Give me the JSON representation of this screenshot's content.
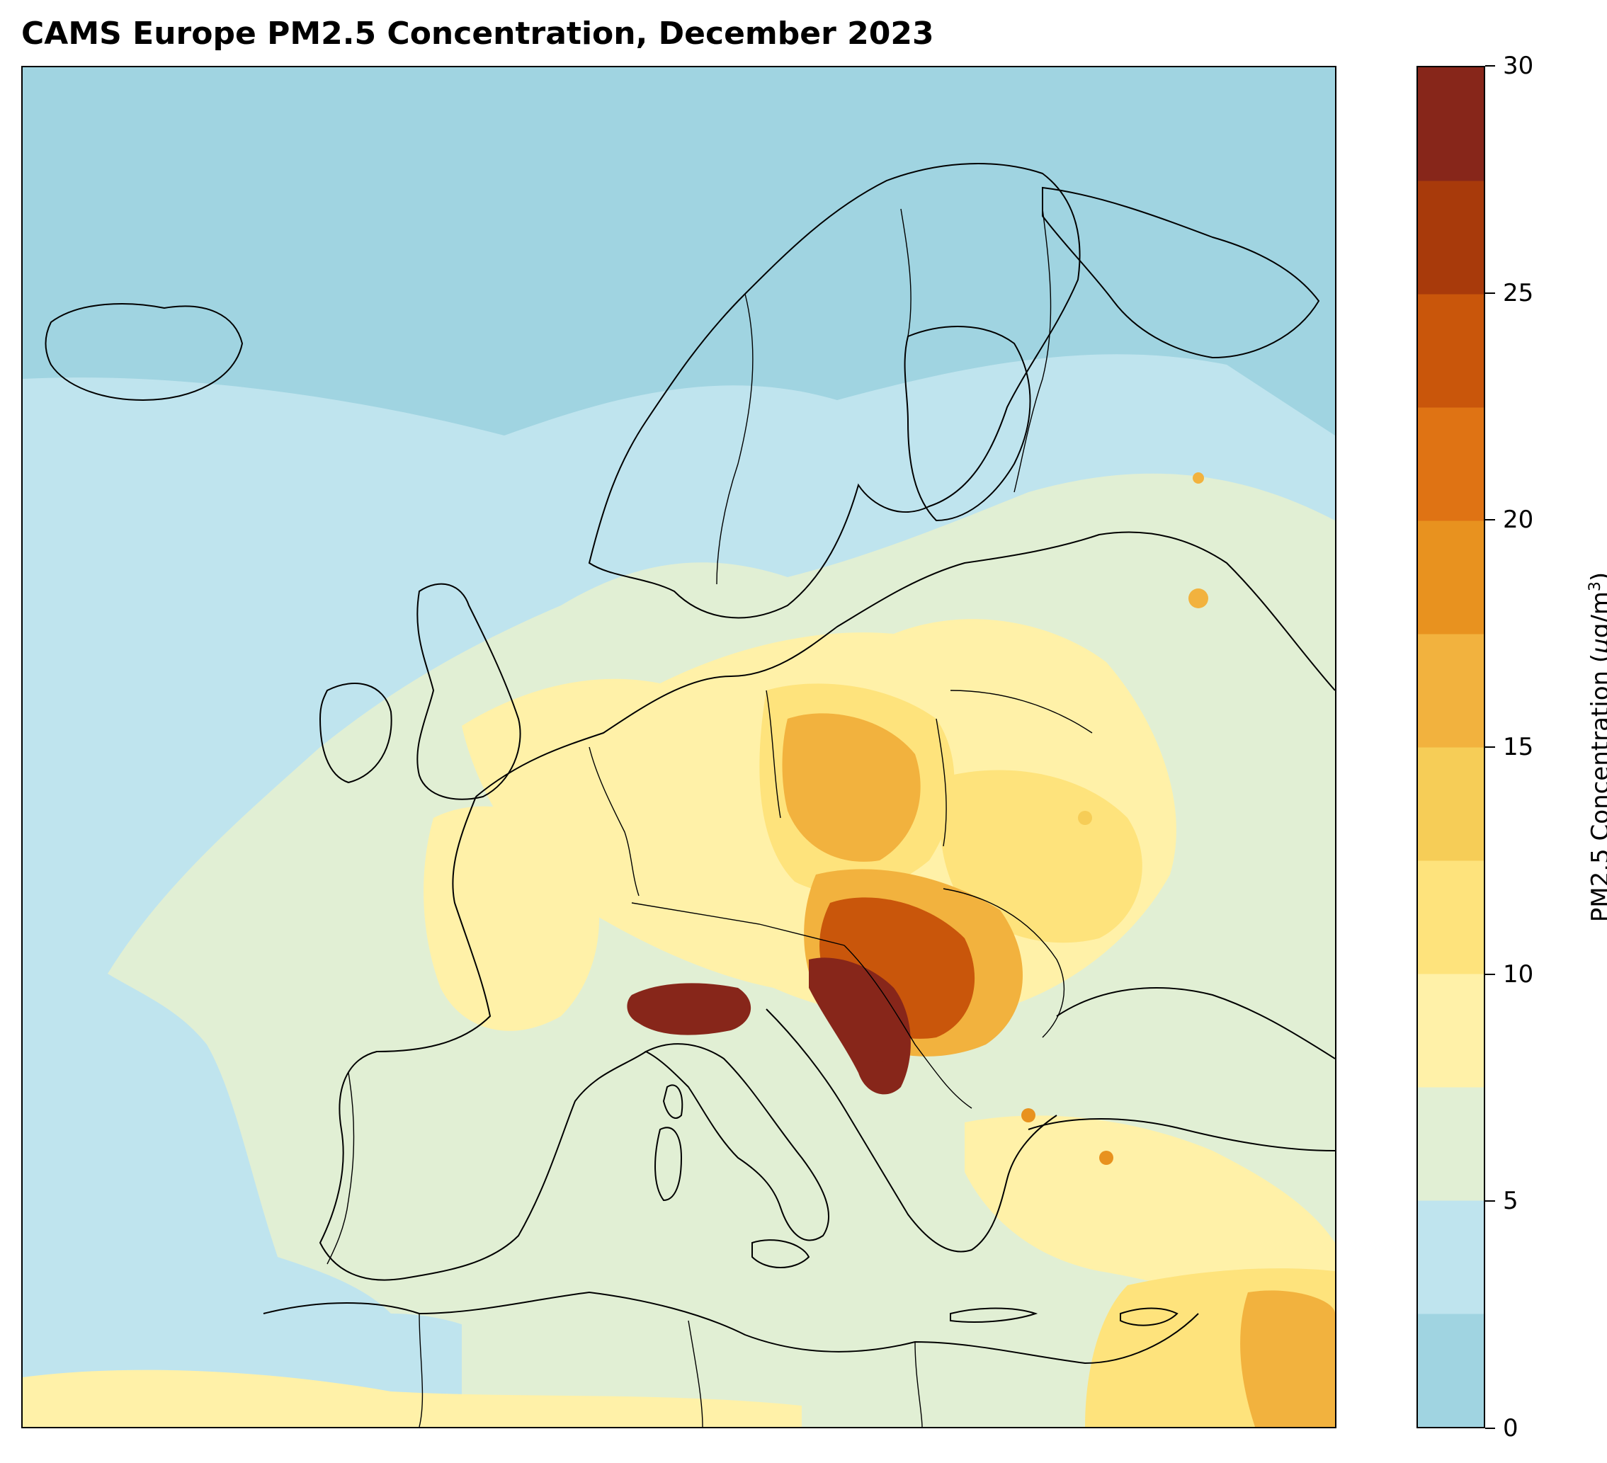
{
  "title": "CAMS Europe PM2.5 Concentration, December 2023",
  "colorbar": {
    "label_text": "PM2.5 Concentration (",
    "label_unit_mu": "μ",
    "label_unit_rest": "g/m",
    "label_unit_exp": "3",
    "label_close": ")",
    "ticks": [
      {
        "value": 0,
        "label": "0"
      },
      {
        "value": 5,
        "label": "5"
      },
      {
        "value": 10,
        "label": "10"
      },
      {
        "value": 15,
        "label": "15"
      },
      {
        "value": 20,
        "label": "20"
      },
      {
        "value": 25,
        "label": "25"
      },
      {
        "value": 30,
        "label": "30"
      }
    ],
    "range": [
      0,
      30
    ],
    "levels": [
      0,
      2.5,
      5,
      7.5,
      10,
      12.5,
      15,
      17.5,
      20,
      22.5,
      25,
      27.5,
      30
    ],
    "colors": [
      "#a0d4e1",
      "#bfe4ee",
      "#e1efd4",
      "#fff1a8",
      "#fee37c",
      "#f6cd57",
      "#f2b23e",
      "#e8921f",
      "#df7314",
      "#c9560b",
      "#a83a0b",
      "#87261a"
    ]
  },
  "map": {
    "region": "Europe",
    "variable": "PM2.5",
    "period": "December 2023",
    "colors": {
      "ocean_north": "#a0d4e1",
      "ocean": "#bfe4ee",
      "low": "#e1efd4",
      "moderate": "#fff1a8",
      "elevated": "#fee37c",
      "high": "#f2b23e",
      "very_high": "#c9560b",
      "extreme": "#87261a",
      "coastline": "#000000"
    }
  }
}
